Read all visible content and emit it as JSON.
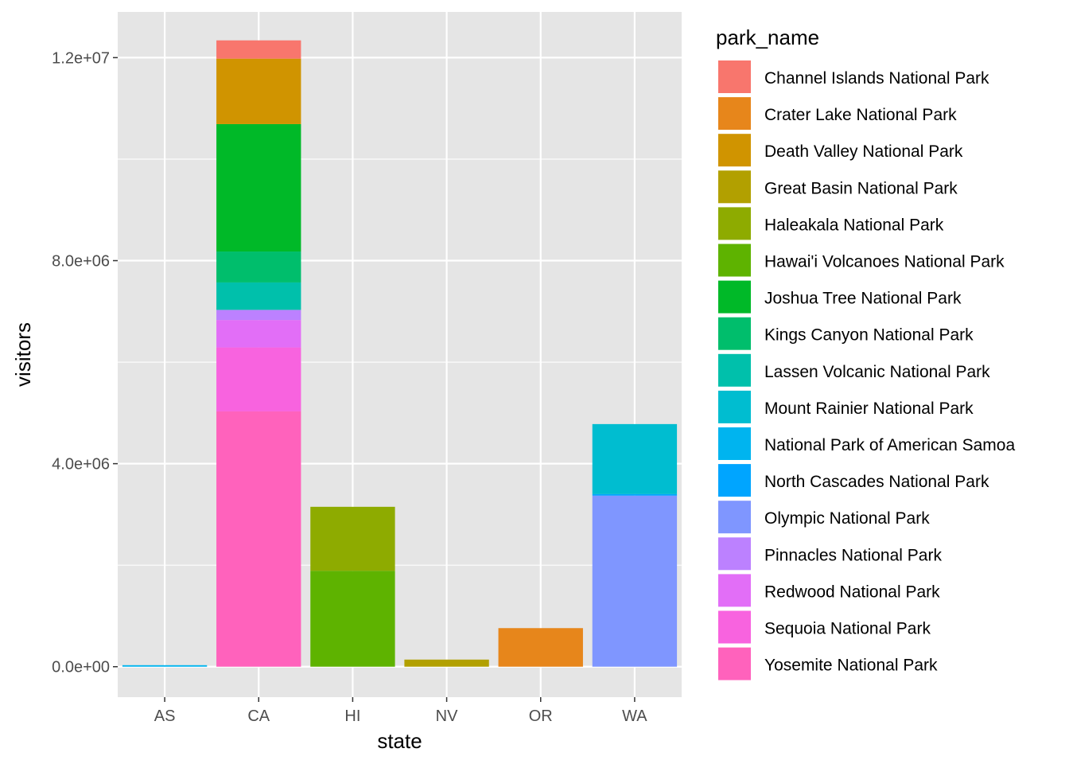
{
  "chart_data": {
    "type": "bar",
    "stacked": true,
    "xlabel": "state",
    "ylabel": "visitors",
    "categories": [
      "AS",
      "CA",
      "HI",
      "NV",
      "OR",
      "WA"
    ],
    "ylim": [
      -600000,
      12900000
    ],
    "y_ticks": [
      0,
      4000000,
      8000000,
      12000000
    ],
    "y_tick_labels": [
      "0.0e+00",
      "4.0e+06",
      "8.0e+06",
      "1.2e+07"
    ],
    "grid": true,
    "panel_background": "#E5E5E5",
    "legend_position": "right",
    "legend_title": "park_name",
    "series": [
      {
        "name": "Channel Islands National Park",
        "color": "#F8766D",
        "values": [
          0,
          360000,
          0,
          0,
          0,
          0
        ]
      },
      {
        "name": "Crater Lake National Park",
        "color": "#E7861B",
        "values": [
          0,
          0,
          0,
          0,
          760000,
          0
        ]
      },
      {
        "name": "Death Valley National Park",
        "color": "#D09400",
        "values": [
          0,
          1290000,
          0,
          0,
          0,
          0
        ]
      },
      {
        "name": "Great Basin National Park",
        "color": "#B2A000",
        "values": [
          0,
          0,
          0,
          140000,
          0,
          0
        ]
      },
      {
        "name": "Haleakala National Park",
        "color": "#8EAB00",
        "values": [
          0,
          0,
          1260000,
          0,
          0,
          0
        ]
      },
      {
        "name": "Hawai'i Volcanoes National Park",
        "color": "#5EB300",
        "values": [
          0,
          0,
          1890000,
          0,
          0,
          0
        ]
      },
      {
        "name": "Joshua Tree National Park",
        "color": "#00B928",
        "values": [
          0,
          2510000,
          0,
          0,
          0,
          0
        ]
      },
      {
        "name": "Kings Canyon National Park",
        "color": "#00BE6C",
        "values": [
          0,
          610000,
          0,
          0,
          0,
          0
        ]
      },
      {
        "name": "Lassen Volcanic National Park",
        "color": "#00C0AB",
        "values": [
          0,
          540000,
          0,
          0,
          0,
          0
        ]
      },
      {
        "name": "Mount Rainier National Park",
        "color": "#00BDD0",
        "values": [
          0,
          0,
          0,
          0,
          0,
          1380000
        ]
      },
      {
        "name": "National Park of American Samoa",
        "color": "#00B4EF",
        "values": [
          30000,
          0,
          0,
          0,
          0,
          0
        ]
      },
      {
        "name": "North Cascades National Park",
        "color": "#00A5FF",
        "values": [
          0,
          0,
          0,
          0,
          0,
          30000
        ]
      },
      {
        "name": "Olympic National Park",
        "color": "#7F96FF",
        "values": [
          0,
          0,
          0,
          0,
          0,
          3370000
        ]
      },
      {
        "name": "Pinnacles National Park",
        "color": "#BC81FF",
        "values": [
          0,
          200000,
          0,
          0,
          0,
          0
        ]
      },
      {
        "name": "Redwood National Park",
        "color": "#E26EF7",
        "values": [
          0,
          540000,
          0,
          0,
          0,
          0
        ]
      },
      {
        "name": "Sequoia National Park",
        "color": "#F863DF",
        "values": [
          0,
          1260000,
          0,
          0,
          0,
          0
        ]
      },
      {
        "name": "Yosemite National Park",
        "color": "#FF62BC",
        "values": [
          0,
          5030000,
          0,
          0,
          0,
          0
        ]
      }
    ]
  }
}
